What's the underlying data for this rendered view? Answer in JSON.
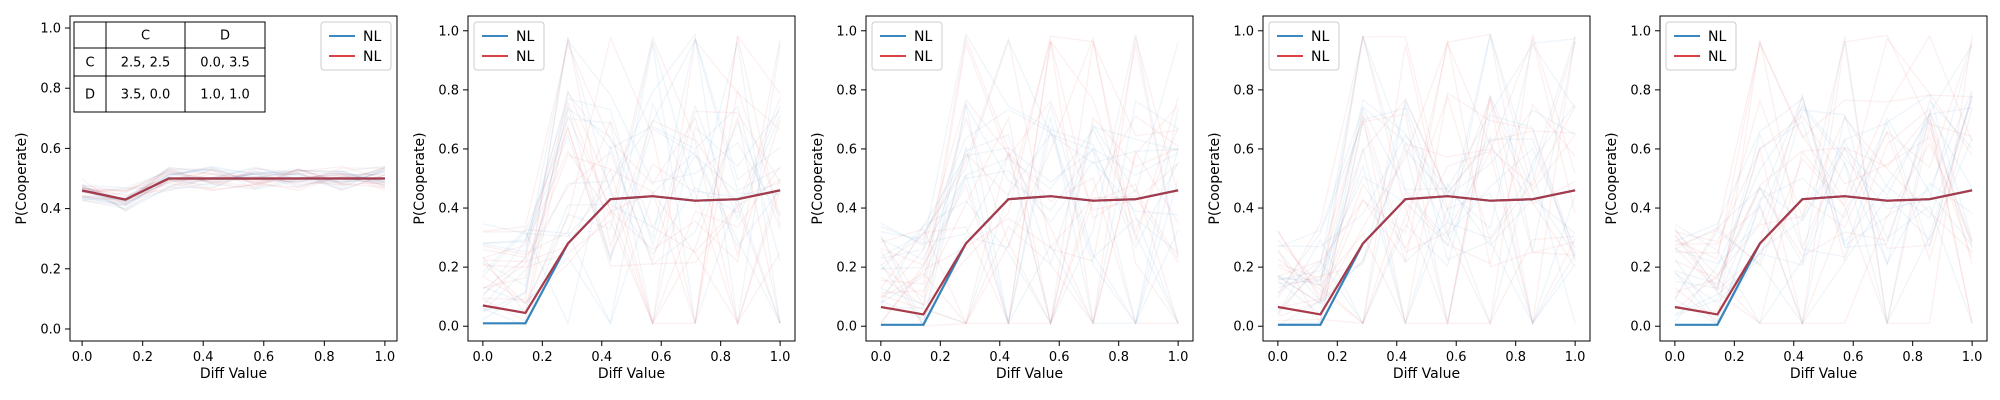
{
  "chart_data": [
    {
      "type": "line",
      "xlabel": "Diff Value",
      "ylabel": "P(Cooperate)",
      "xlim": [
        -0.04,
        1.04
      ],
      "ylim": [
        -0.04,
        1.04
      ],
      "xticks": [
        "0.0",
        "0.2",
        "0.4",
        "0.6",
        "0.8",
        "1.0"
      ],
      "yticks": [
        "0.0",
        "0.2",
        "0.4",
        "0.6",
        "0.8",
        "1.0"
      ],
      "legend": [
        "NL",
        "NL"
      ],
      "legend_position": "top-right",
      "payoff_table": {
        "col_headers": [
          "",
          "C",
          "D"
        ],
        "rows": [
          {
            "label": "C",
            "cells": [
              "2.5, 2.5",
              "0.0, 3.5"
            ]
          },
          {
            "label": "D",
            "cells": [
              "3.5, 0.0",
              "1.0, 1.0"
            ]
          }
        ]
      },
      "x": [
        0.0,
        0.143,
        0.286,
        0.429,
        0.571,
        0.714,
        0.857,
        1.0
      ],
      "series": [
        {
          "name": "NL",
          "color": "#1f77b4",
          "values": [
            0.46,
            0.43,
            0.5,
            0.5,
            0.5,
            0.5,
            0.5,
            0.5
          ]
        },
        {
          "name": "NL",
          "color": "#d62728",
          "values": [
            0.46,
            0.43,
            0.5,
            0.5,
            0.5,
            0.5,
            0.5,
            0.5
          ]
        }
      ]
    },
    {
      "type": "line",
      "xlabel": "Diff Value",
      "ylabel": "P(Cooperate)",
      "xlim": [
        -0.05,
        1.05
      ],
      "ylim": [
        -0.05,
        1.05
      ],
      "xticks": [
        "0.0",
        "0.2",
        "0.4",
        "0.6",
        "0.8",
        "1.0"
      ],
      "yticks": [
        "0.0",
        "0.2",
        "0.4",
        "0.6",
        "0.8",
        "1.0"
      ],
      "legend": [
        "NL",
        "NL"
      ],
      "legend_position": "top-left",
      "x": [
        0.0,
        0.143,
        0.286,
        0.429,
        0.571,
        0.714,
        0.857,
        1.0
      ],
      "series": [
        {
          "name": "NL",
          "color": "#1f77b4",
          "values": [
            0.01,
            0.01,
            0.28,
            0.43,
            0.44,
            0.425,
            0.43,
            0.46
          ]
        },
        {
          "name": "NL",
          "color": "#d62728",
          "values": [
            0.07,
            0.045,
            0.28,
            0.43,
            0.44,
            0.425,
            0.43,
            0.46
          ]
        }
      ]
    },
    {
      "type": "line",
      "xlabel": "Diff Value",
      "ylabel": "P(Cooperate)",
      "xlim": [
        -0.05,
        1.05
      ],
      "ylim": [
        -0.05,
        1.05
      ],
      "xticks": [
        "0.0",
        "0.2",
        "0.4",
        "0.6",
        "0.8",
        "1.0"
      ],
      "yticks": [
        "0.0",
        "0.2",
        "0.4",
        "0.6",
        "0.8",
        "1.0"
      ],
      "legend": [
        "NL",
        "NL"
      ],
      "legend_position": "top-left",
      "x": [
        0.0,
        0.143,
        0.286,
        0.429,
        0.571,
        0.714,
        0.857,
        1.0
      ],
      "series": [
        {
          "name": "NL",
          "color": "#1f77b4",
          "values": [
            0.005,
            0.005,
            0.28,
            0.43,
            0.44,
            0.425,
            0.43,
            0.46
          ]
        },
        {
          "name": "NL",
          "color": "#d62728",
          "values": [
            0.065,
            0.04,
            0.28,
            0.43,
            0.44,
            0.425,
            0.43,
            0.46
          ]
        }
      ]
    },
    {
      "type": "line",
      "xlabel": "Diff Value",
      "ylabel": "P(Cooperate)",
      "xlim": [
        -0.05,
        1.05
      ],
      "ylim": [
        -0.05,
        1.05
      ],
      "xticks": [
        "0.0",
        "0.2",
        "0.4",
        "0.6",
        "0.8",
        "1.0"
      ],
      "yticks": [
        "0.0",
        "0.2",
        "0.4",
        "0.6",
        "0.8",
        "1.0"
      ],
      "legend": [
        "NL",
        "NL"
      ],
      "legend_position": "top-left",
      "x": [
        0.0,
        0.143,
        0.286,
        0.429,
        0.571,
        0.714,
        0.857,
        1.0
      ],
      "series": [
        {
          "name": "NL",
          "color": "#1f77b4",
          "values": [
            0.005,
            0.005,
            0.28,
            0.43,
            0.44,
            0.425,
            0.43,
            0.46
          ]
        },
        {
          "name": "NL",
          "color": "#d62728",
          "values": [
            0.065,
            0.04,
            0.28,
            0.43,
            0.44,
            0.425,
            0.43,
            0.46
          ]
        }
      ]
    },
    {
      "type": "line",
      "xlabel": "Diff Value",
      "ylabel": "P(Cooperate)",
      "xlim": [
        -0.05,
        1.05
      ],
      "ylim": [
        -0.05,
        1.05
      ],
      "xticks": [
        "0.0",
        "0.2",
        "0.4",
        "0.6",
        "0.8",
        "1.0"
      ],
      "yticks": [
        "0.0",
        "0.2",
        "0.4",
        "0.6",
        "0.8",
        "1.0"
      ],
      "legend": [
        "NL",
        "NL"
      ],
      "legend_position": "top-left",
      "x": [
        0.0,
        0.143,
        0.286,
        0.429,
        0.571,
        0.714,
        0.857,
        1.0
      ],
      "series": [
        {
          "name": "NL",
          "color": "#1f77b4",
          "values": [
            0.005,
            0.005,
            0.28,
            0.43,
            0.44,
            0.425,
            0.43,
            0.46
          ]
        },
        {
          "name": "NL",
          "color": "#d62728",
          "values": [
            0.065,
            0.04,
            0.28,
            0.43,
            0.44,
            0.425,
            0.43,
            0.46
          ]
        }
      ]
    }
  ]
}
